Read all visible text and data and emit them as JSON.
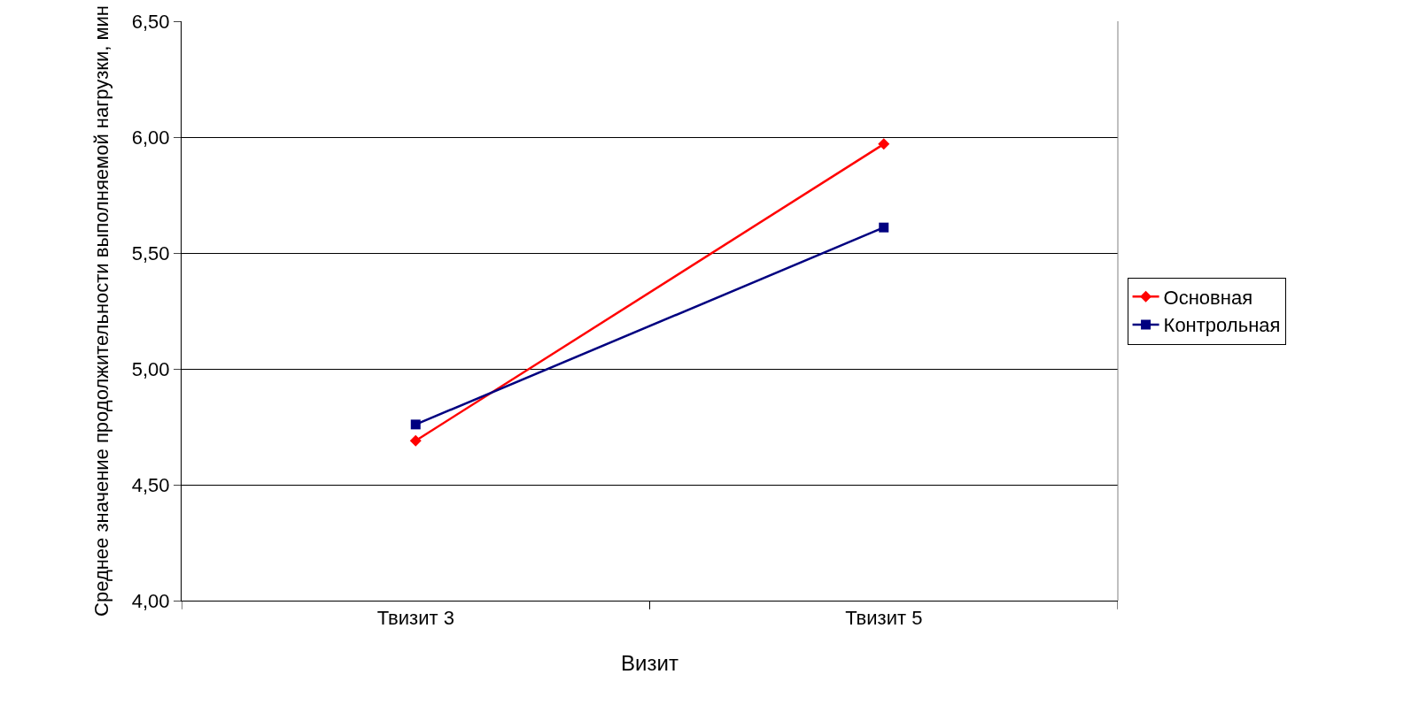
{
  "chart_data": {
    "type": "line",
    "xlabel": "Визит",
    "ylabel": "Среднее значение продолжительности выполняемой нагрузки, мин",
    "categories": [
      "Твизит 3",
      "Твизит 5"
    ],
    "series": [
      {
        "name": "Основная",
        "color": "#ff0000",
        "values": [
          4.69,
          5.97
        ],
        "marker": "diamond"
      },
      {
        "name": "Контрольная",
        "color": "#000080",
        "values": [
          4.76,
          5.61
        ],
        "marker": "square"
      }
    ],
    "ylim": [
      4.0,
      6.5
    ],
    "yticks": [
      {
        "value": 4.0,
        "label": "4,00"
      },
      {
        "value": 4.5,
        "label": "4,50"
      },
      {
        "value": 5.0,
        "label": "5,00"
      },
      {
        "value": 5.5,
        "label": "5,50"
      },
      {
        "value": 6.0,
        "label": "6,00"
      },
      {
        "value": 6.5,
        "label": "6,50"
      }
    ],
    "grid": "y",
    "legend": "right",
    "line_style": "solid"
  }
}
